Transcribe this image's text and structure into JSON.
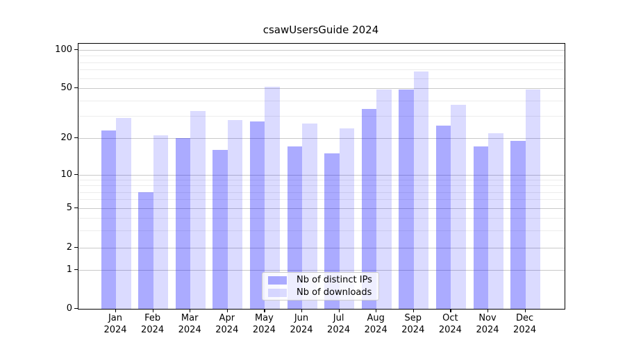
{
  "title": "csawUsersGuide 2024",
  "chart_data": {
    "type": "bar",
    "title": "csawUsersGuide 2024",
    "xlabel": "",
    "ylabel": "",
    "categories": [
      "Jan 2024",
      "Feb 2024",
      "Mar 2024",
      "Apr 2024",
      "May 2024",
      "Jun 2024",
      "Jul 2024",
      "Aug 2024",
      "Sep 2024",
      "Oct 2024",
      "Nov 2024",
      "Dec 2024"
    ],
    "series": [
      {
        "name": "Nb of distinct IPs",
        "color": "rgba(0,0,255,0.33)",
        "color_hex": "#ababff",
        "values": [
          23,
          7,
          20,
          16,
          27,
          17,
          15,
          34,
          49,
          25,
          17,
          19
        ]
      },
      {
        "name": "Nb of downloads",
        "color": "rgba(0,0,255,0.14)",
        "color_hex": "#dbdbff",
        "values": [
          29,
          21,
          33,
          28,
          51,
          26,
          24,
          49,
          68,
          37,
          22,
          49
        ]
      }
    ],
    "y_scale": "log-like",
    "y_ticks": [
      0,
      1,
      2,
      5,
      10,
      20,
      50,
      100
    ],
    "y_minor_gridlines": [
      3,
      4,
      6,
      7,
      8,
      9,
      30,
      40,
      60,
      70,
      80,
      90
    ],
    "ylim": [
      0,
      112
    ],
    "grid": true,
    "legend_position": "lower center"
  }
}
